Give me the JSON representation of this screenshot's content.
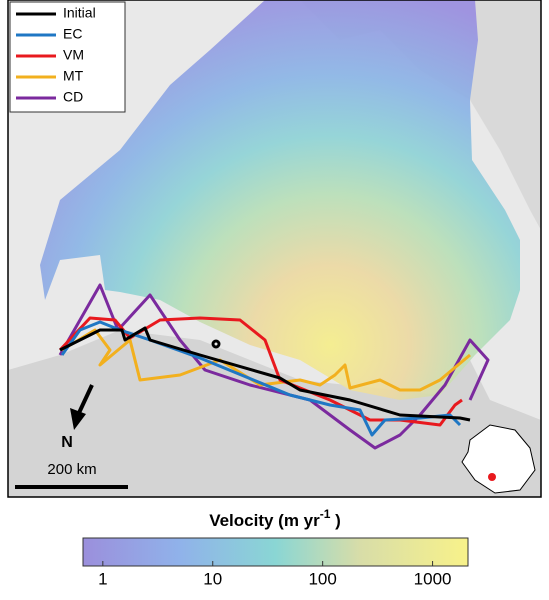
{
  "legend": {
    "entries": [
      {
        "label": "Initial",
        "color": "#000000"
      },
      {
        "label": "EC",
        "color": "#1f77c4"
      },
      {
        "label": "VM",
        "color": "#e8191e"
      },
      {
        "label": "MT",
        "color": "#f2b01e"
      },
      {
        "label": "CD",
        "color": "#7b2a9e"
      }
    ]
  },
  "north_arrow": "N",
  "scale_bar": "200 km",
  "colorbar": {
    "title": [
      "Velocity (m yr",
      "-1",
      " )"
    ],
    "log_scale": true,
    "lim": [
      0.66,
      2100
    ],
    "ticks": [
      1,
      10,
      100,
      1000
    ]
  }
}
